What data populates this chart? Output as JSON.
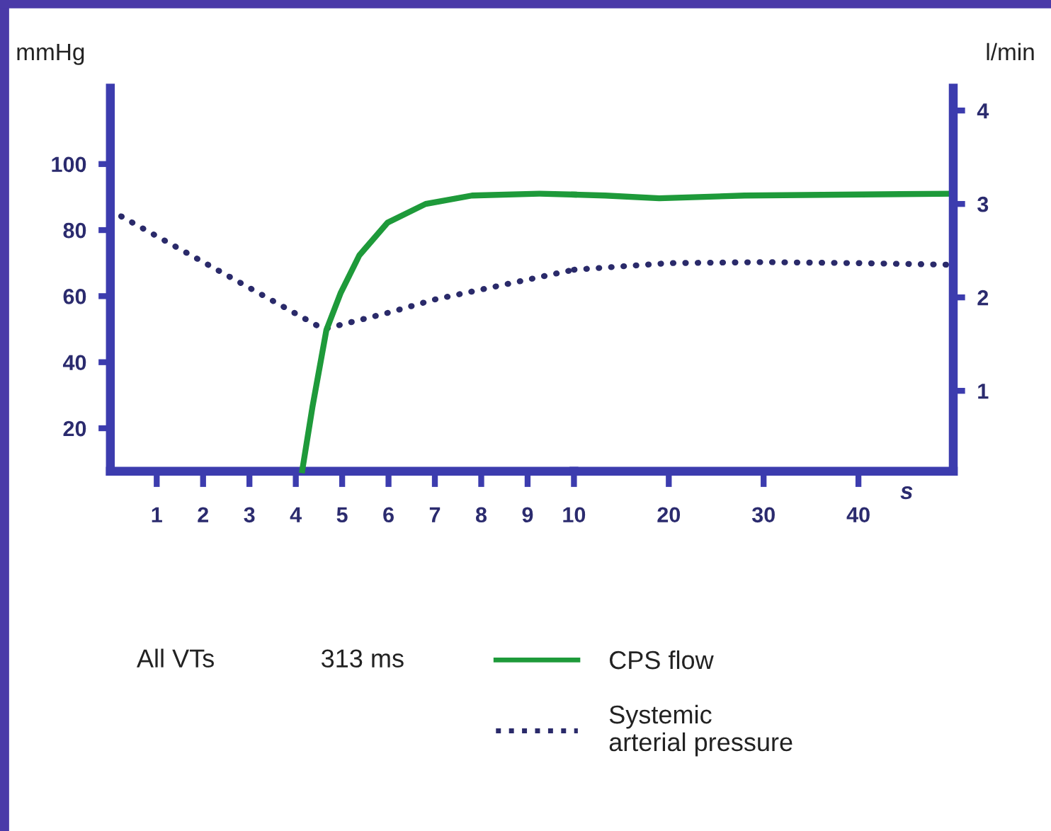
{
  "chart_data": [
    {
      "type": "line",
      "ylabel": "mmHg",
      "annotations": [
        "All VTs",
        "313 ms"
      ],
      "xlim": [
        0,
        10
      ],
      "xticks": [
        1,
        2,
        3,
        4,
        5,
        6,
        7,
        8,
        9,
        10
      ],
      "ylim": [
        7,
        123
      ],
      "yticks": [
        20,
        40,
        60,
        80,
        100
      ],
      "y2lim": [
        0.14,
        4.24
      ],
      "grid": false,
      "legend": "bottom",
      "marker": "none",
      "series": [
        {
          "name": "CPS flow",
          "color": "#1e9a3a",
          "axis": "y2",
          "line_style": "solid",
          "x": [
            4.14,
            4.36,
            4.66,
            4.97,
            5.37,
            5.98,
            6.8,
            7.8,
            9.25,
            10
          ],
          "values": [
            0.15,
            0.83,
            1.65,
            2.05,
            2.45,
            2.8,
            3.0,
            3.09,
            3.11,
            3.1
          ]
        },
        {
          "name": "Systemic\narterial pressure",
          "color": "#2a2a6a",
          "axis": "y",
          "line_style": "dotted",
          "x": [
            0,
            4.6,
            6,
            7,
            8,
            9,
            10
          ],
          "values": [
            86,
            50,
            55,
            59,
            62,
            65,
            68
          ]
        }
      ]
    },
    {
      "type": "line",
      "y2label": "l/min",
      "xlabel": "s",
      "xlim": [
        10,
        50
      ],
      "xticks": [
        20,
        30,
        40
      ],
      "ylim": [
        7,
        123
      ],
      "y2lim": [
        0.14,
        4.24
      ],
      "y2ticks": [
        1,
        2,
        3,
        4
      ],
      "grid": false,
      "marker": "none",
      "series": [
        {
          "color": "#1e9a3a",
          "axis": "y2",
          "line_style": "solid",
          "x": [
            10,
            13.3,
            19,
            28,
            50
          ],
          "values": [
            3.1,
            3.09,
            3.06,
            3.09,
            3.11
          ]
        },
        {
          "color": "#2a2a6a",
          "axis": "y",
          "line_style": "dotted",
          "x": [
            10,
            20,
            30,
            40,
            50
          ],
          "values": [
            68,
            70,
            70.3,
            70,
            69.5
          ]
        }
      ]
    }
  ]
}
